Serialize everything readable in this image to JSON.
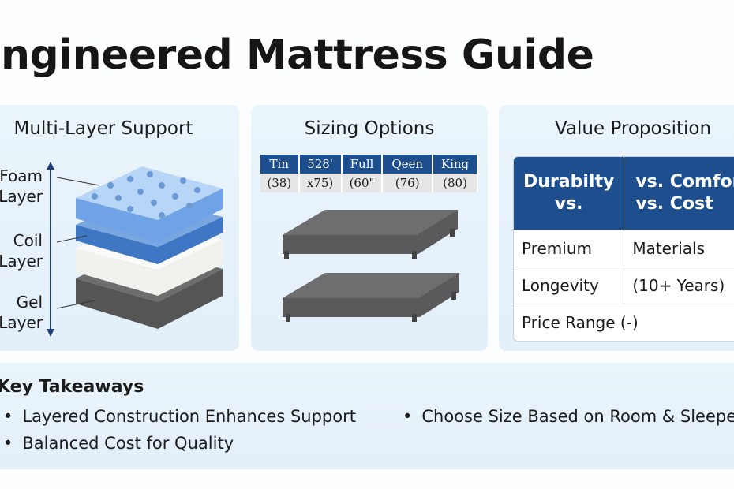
{
  "header": {
    "title": "Engineered Mattress Guide"
  },
  "panels": [
    {
      "title": "Multi-Layer Support",
      "layers": [
        "Foam Layer",
        "Coil Layer",
        "Gel Layer"
      ]
    },
    {
      "title": "Sizing Options",
      "table": {
        "header": [
          "Tin",
          "528'",
          "Full",
          "Qeen",
          "King"
        ],
        "rows": [
          [
            "(38)",
            "x75)",
            "(60\"",
            "(76)",
            "(80)"
          ]
        ]
      }
    },
    {
      "title": "Value Proposition",
      "table": {
        "header": [
          "Durabilty vs.",
          "vs. Comfort vs. Cost"
        ],
        "rows": [
          [
            "Premium",
            "Materials"
          ],
          [
            "Longevity",
            "(10+ Years)"
          ],
          [
            "Price Range (-)"
          ]
        ]
      }
    }
  ],
  "takeaways": {
    "title": "Key Takeaways",
    "items": [
      "Layered Construction Enhances Support",
      "Balanced Cost for Quality",
      "Choose Size Based on Room & Sleeper"
    ]
  }
}
